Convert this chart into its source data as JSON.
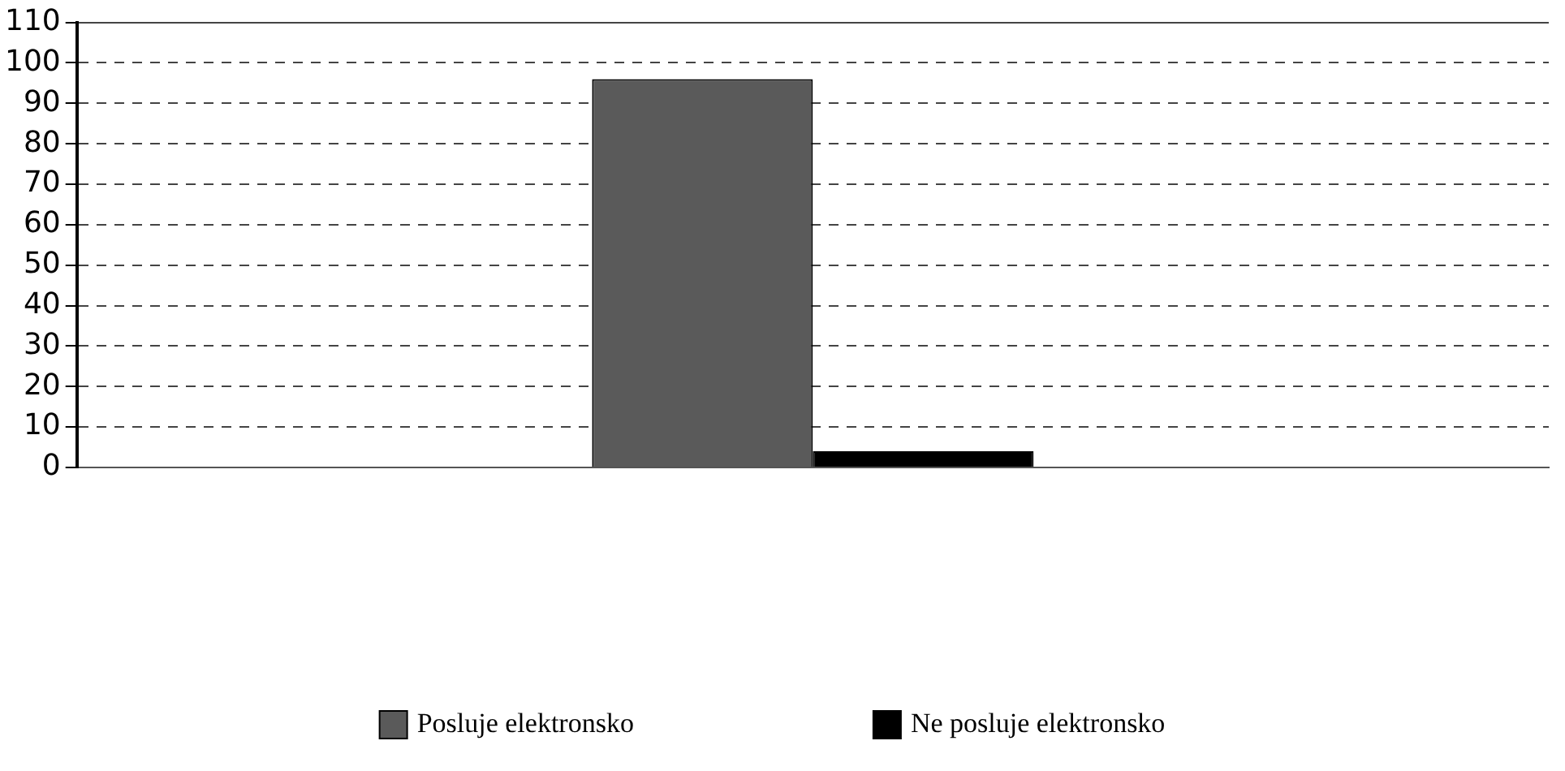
{
  "chart_data": {
    "type": "bar",
    "categories": [
      null
    ],
    "series": [
      {
        "name": "Posluje elektronsko",
        "color": "#5a5a5a",
        "values": [
          96
        ]
      },
      {
        "name": "Ne posluje elektronsko",
        "color": "#000000",
        "values": [
          4
        ]
      }
    ],
    "ylim": [
      0,
      110
    ],
    "yticks": [
      0,
      10,
      20,
      30,
      40,
      50,
      60,
      70,
      80,
      90,
      100,
      110
    ],
    "grid": "y",
    "legend": "bottom",
    "line_style": "dashed"
  }
}
